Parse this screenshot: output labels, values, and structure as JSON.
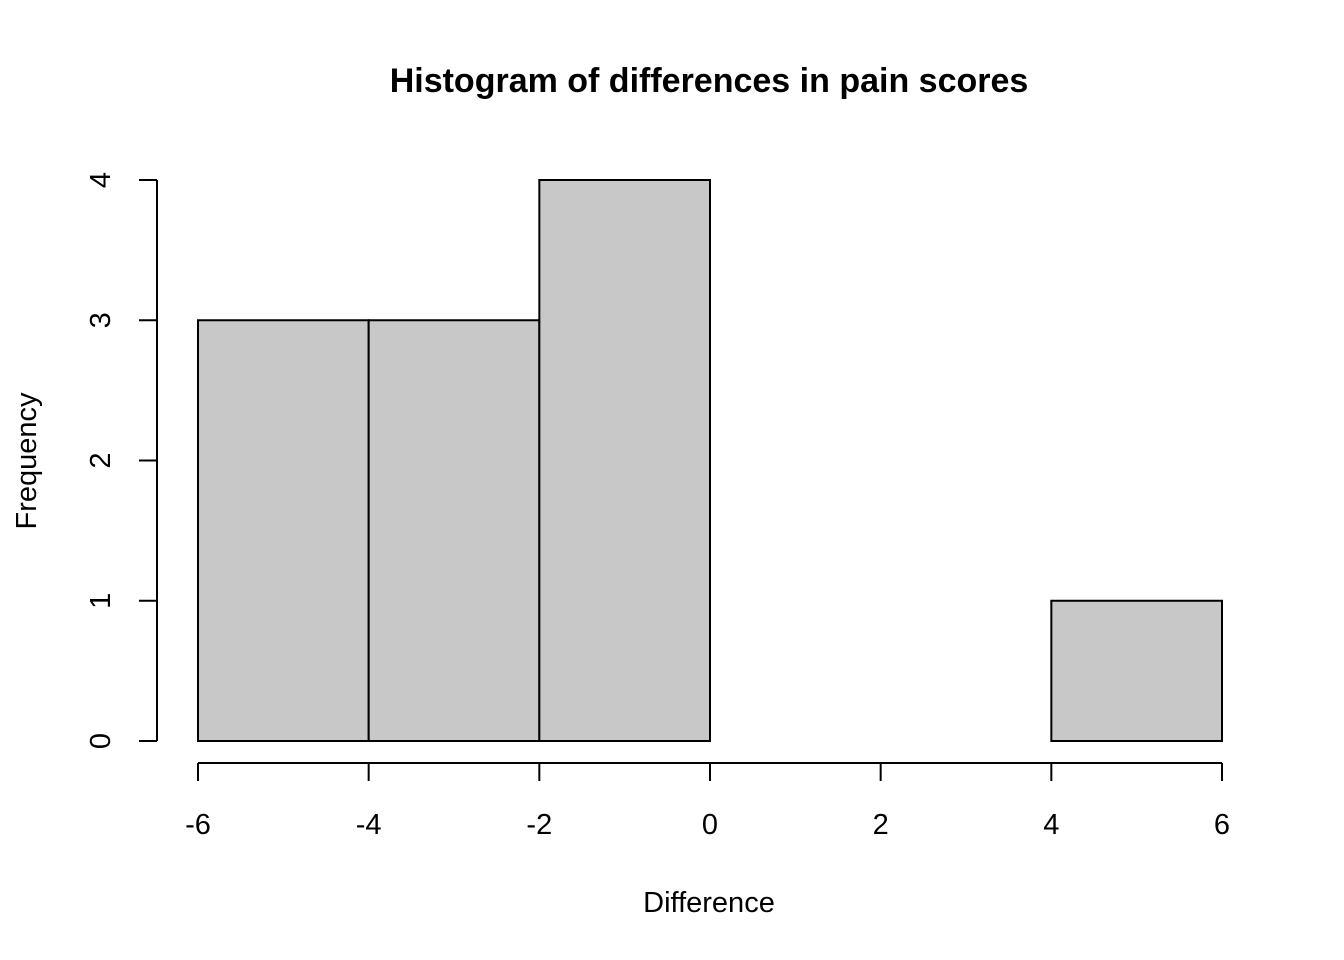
{
  "chart_data": {
    "type": "bar",
    "title": "Histogram of differences in pain scores",
    "xlabel": "Difference",
    "ylabel": "Frequency",
    "bin_edges": [
      -6,
      -4,
      -2,
      0,
      2,
      4,
      6
    ],
    "values": [
      3,
      3,
      4,
      0,
      0,
      1
    ],
    "xlim": [
      -6,
      6
    ],
    "ylim": [
      0,
      4
    ],
    "x_ticks": [
      -6,
      -4,
      -2,
      0,
      2,
      4,
      6
    ],
    "y_ticks": [
      0,
      1,
      2,
      3,
      4
    ],
    "bar_color": "#c8c8c8",
    "grid": false
  }
}
